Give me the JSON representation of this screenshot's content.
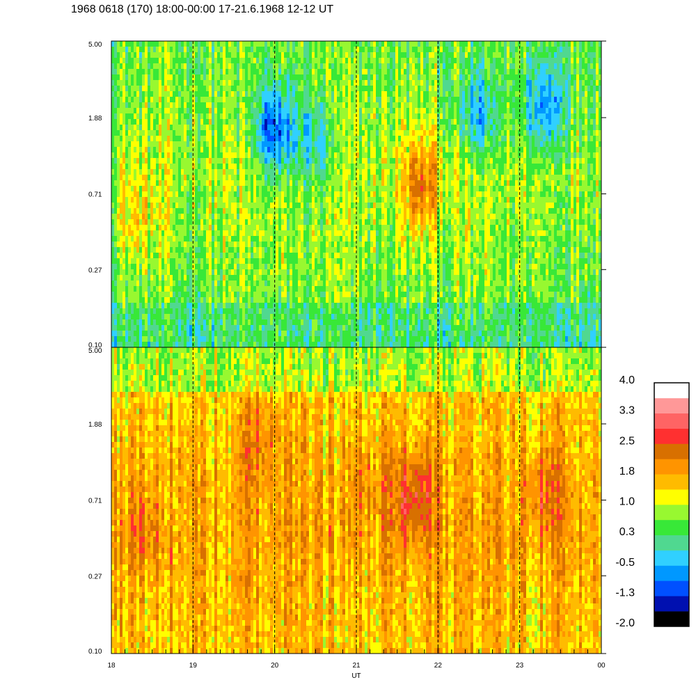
{
  "title": "1968 0618 (170) 18:00-00:00 17-21.6.1968  12-12 UT",
  "chart_data": {
    "type": "heatmap",
    "title": "1968 0618 (170) 18:00-00:00 17-21.6.1968  12-12 UT",
    "xlabel": "UT",
    "x_ticks": [
      "18",
      "19",
      "20",
      "21",
      "22",
      "23",
      "00"
    ],
    "x_range": [
      18,
      24
    ],
    "panels": [
      {
        "name": "",
        "y_scale": "log",
        "y_range": [
          0.1,
          5.0
        ],
        "y_ticks": [
          "5.00",
          "1.88",
          "0.71",
          "0.27",
          "0.10"
        ],
        "typical_level": 0.5,
        "features": [
          {
            "ut": 20.0,
            "freq": 1.6,
            "level": -1.3
          },
          {
            "ut": 20.5,
            "freq": 1.3,
            "level": -0.5
          },
          {
            "ut": 22.5,
            "freq": 2.0,
            "level": -0.8
          },
          {
            "ut": 23.3,
            "freq": 2.2,
            "level": -0.8
          },
          {
            "ut": 21.8,
            "freq": 0.8,
            "level": 1.8
          },
          {
            "ut": 18.3,
            "freq": 0.5,
            "level": 1.0
          }
        ]
      },
      {
        "name": "",
        "y_scale": "log",
        "y_range": [
          0.1,
          5.0
        ],
        "y_ticks": [
          "5.00",
          "1.88",
          "0.71",
          "0.27",
          "0.10"
        ],
        "typical_level": 1.6,
        "features": [
          {
            "ut": 21.7,
            "freq": 0.75,
            "level": 2.6
          },
          {
            "ut": 21.1,
            "freq": 0.9,
            "level": 2.0
          },
          {
            "ut": 23.3,
            "freq": 0.8,
            "level": 2.3
          },
          {
            "ut": 19.8,
            "freq": 1.5,
            "level": 2.1
          },
          {
            "ut": 18.4,
            "freq": 0.5,
            "level": 2.0
          }
        ]
      }
    ],
    "colorbar": {
      "labels": [
        "4.0",
        "3.3",
        "2.5",
        "1.8",
        "1.0",
        "0.3",
        "-0.5",
        "-1.3",
        "-2.0"
      ],
      "range": [
        -2.0,
        4.0
      ],
      "colors": [
        "#000000",
        "#0010b0",
        "#0050ff",
        "#0098ff",
        "#30d0ff",
        "#50d890",
        "#38e838",
        "#98f830",
        "#ffff00",
        "#ffbb00",
        "#ff9400",
        "#d87000",
        "#ff3030",
        "#ff6464",
        "#ff9898",
        "#ffffff"
      ]
    },
    "grid": "dashed vertical lines at hours",
    "legend": "colorbar right"
  }
}
